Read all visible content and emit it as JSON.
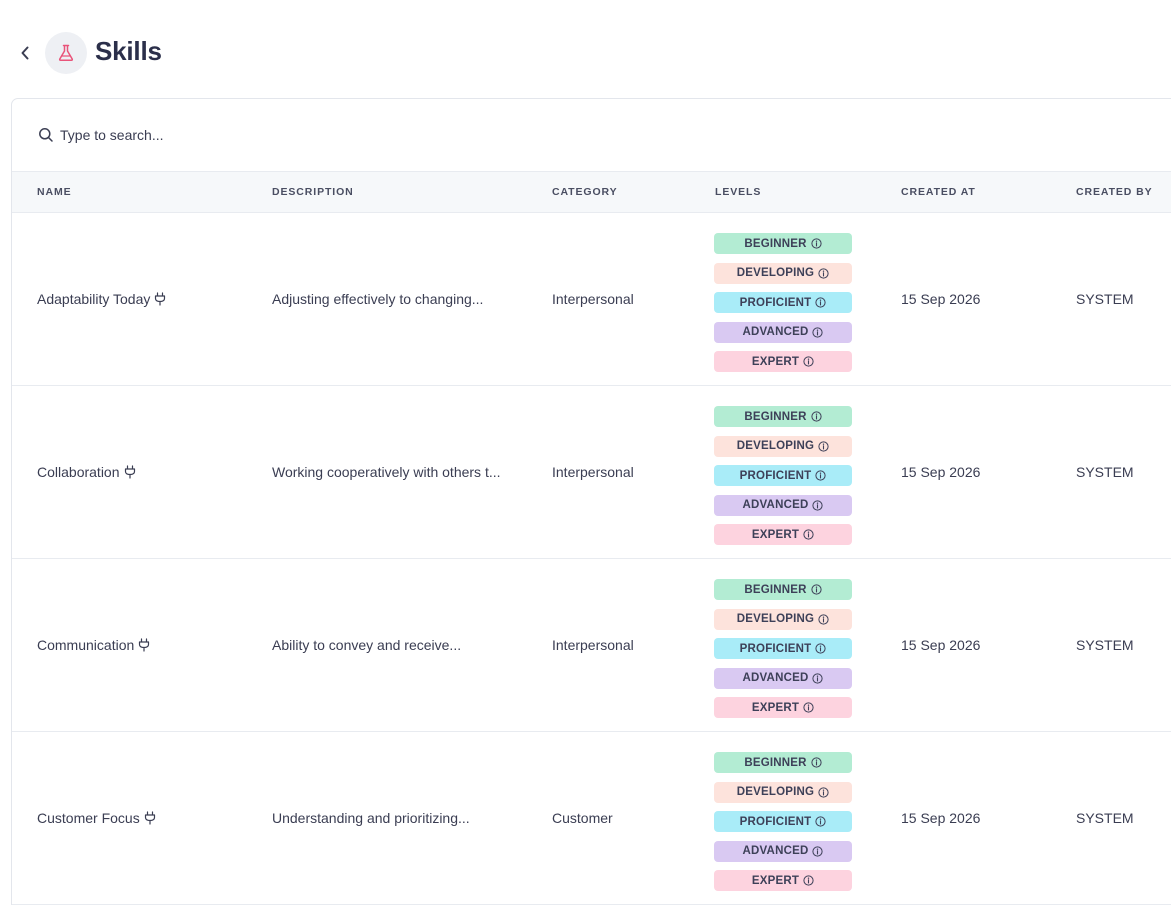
{
  "header": {
    "title": "Skills"
  },
  "search": {
    "placeholder": "Type to search..."
  },
  "columns": {
    "name": "NAME",
    "description": "DESCRIPTION",
    "category": "CATEGORY",
    "levels": "LEVELS",
    "created_at": "CREATED AT",
    "created_by": "CREATED BY"
  },
  "level_labels": [
    "BEGINNER",
    "DEVELOPING",
    "PROFICIENT",
    "ADVANCED",
    "EXPERT"
  ],
  "colors": {
    "beginner": "#b3ecd3",
    "developing": "#fde3dc",
    "proficient": "#a9ecf8",
    "advanced": "#d9c9f2",
    "expert": "#fdd3df",
    "accent": "#e9547a"
  },
  "rows": [
    {
      "name": "Adaptability Today",
      "description": "Adjusting effectively to changing...",
      "category": "Interpersonal",
      "created_at": "15 Sep 2026",
      "created_by": "SYSTEM"
    },
    {
      "name": "Collaboration",
      "description": "Working cooperatively with others t...",
      "category": "Interpersonal",
      "created_at": "15 Sep 2026",
      "created_by": "SYSTEM"
    },
    {
      "name": "Communication",
      "description": "Ability to convey and receive...",
      "category": "Interpersonal",
      "created_at": "15 Sep 2026",
      "created_by": "SYSTEM"
    },
    {
      "name": "Customer Focus",
      "description": "Understanding and prioritizing...",
      "category": "Customer",
      "created_at": "15 Sep 2026",
      "created_by": "SYSTEM"
    }
  ]
}
